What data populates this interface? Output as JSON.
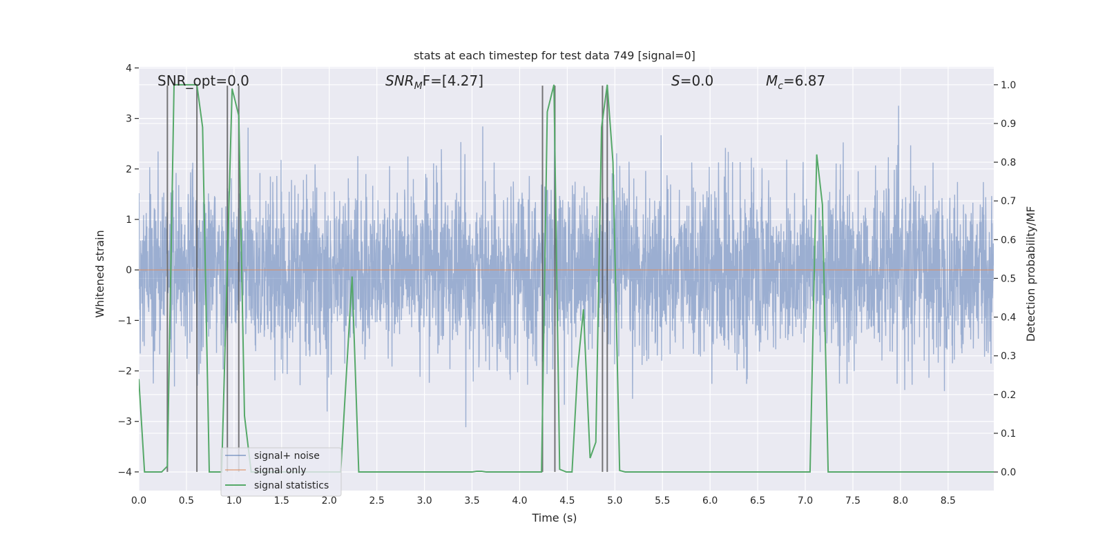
{
  "chart_data": {
    "type": "line",
    "title": "stats at each timestep for test data 749 [signal=0]",
    "xlabel": "Time (s)",
    "ylabel_left": "Whitened strain",
    "ylabel_right": "Detection probability/MF",
    "xlim": [
      0,
      8.98
    ],
    "ylim_left": [
      -4.37,
      4.02
    ],
    "ylim_right": [
      -0.048,
      1.046
    ],
    "x_ticks": [
      "0.0",
      "0.5",
      "1.0",
      "1.5",
      "2.0",
      "2.5",
      "3.0",
      "3.5",
      "4.0",
      "4.5",
      "5.0",
      "5.5",
      "6.0",
      "6.5",
      "7.0",
      "7.5",
      "8.0",
      "8.5"
    ],
    "y_left_ticks": [
      "4",
      "3",
      "2",
      "1",
      "0",
      "−1",
      "−2",
      "−3",
      "−4"
    ],
    "y_right_ticks": [
      "1.0",
      "0.9",
      "0.8",
      "0.7",
      "0.6",
      "0.5",
      "0.4",
      "0.3",
      "0.2",
      "0.1",
      "0.0"
    ],
    "grid": true,
    "background": "#EAEAF2",
    "legend": {
      "placement": "lower-left",
      "entries": [
        "signal+ noise",
        "signal only",
        "signal statistics"
      ]
    },
    "annotations": {
      "snr_opt": "SNR_opt=0.0",
      "snr_mf_main": "SNR",
      "snr_mf_sub": "M",
      "snr_mf_rest": "F=[4.27]",
      "s_sym": "S",
      "s_rest": "=0.0",
      "mc_main": "M",
      "mc_sub": "c",
      "mc_rest": "=6.87"
    },
    "series": [
      {
        "name": "signal+ noise",
        "axis": "left",
        "color": "#4C72B0",
        "kind": "noise",
        "std": 0.85,
        "min": -4.0,
        "max": 3.65
      },
      {
        "name": "signal only",
        "axis": "left",
        "color": "#DD8452",
        "x": [
          0,
          8.98
        ],
        "y": [
          0,
          0
        ]
      },
      {
        "name": "signal statistics",
        "axis": "right",
        "color": "#55A868",
        "x": [
          0,
          0.06,
          0.24,
          0.3,
          0.37,
          0.61,
          0.67,
          0.74,
          0.87,
          0.98,
          1.05,
          1.11,
          1.18,
          2.12,
          2.24,
          2.31,
          3.5,
          3.55,
          3.6,
          3.65,
          4.23,
          4.29,
          4.36,
          4.42,
          4.49,
          4.55,
          4.61,
          4.67,
          4.74,
          4.8,
          4.86,
          4.92,
          4.98,
          5.05,
          5.11,
          7.05,
          7.12,
          7.18,
          7.24,
          8.98
        ],
        "y": [
          0.24,
          0.0,
          0.0,
          0.015,
          1.0,
          1.0,
          0.89,
          0.0,
          0.0,
          0.99,
          0.92,
          0.145,
          0.0,
          0.0,
          0.505,
          0.0,
          0.0,
          0.002,
          0.002,
          0.0,
          0.0,
          0.93,
          1.0,
          0.007,
          0.0,
          0.0,
          0.27,
          0.42,
          0.036,
          0.077,
          0.89,
          1.0,
          0.8,
          0.004,
          0.0,
          0.0,
          0.82,
          0.69,
          0.0,
          0.0
        ]
      }
    ],
    "vertical_markers": {
      "color": "#555555",
      "x": [
        0.3,
        0.61,
        0.93,
        1.05,
        4.24,
        4.37,
        4.87,
        4.92
      ],
      "y_range": [
        -4.0,
        3.65
      ]
    }
  }
}
